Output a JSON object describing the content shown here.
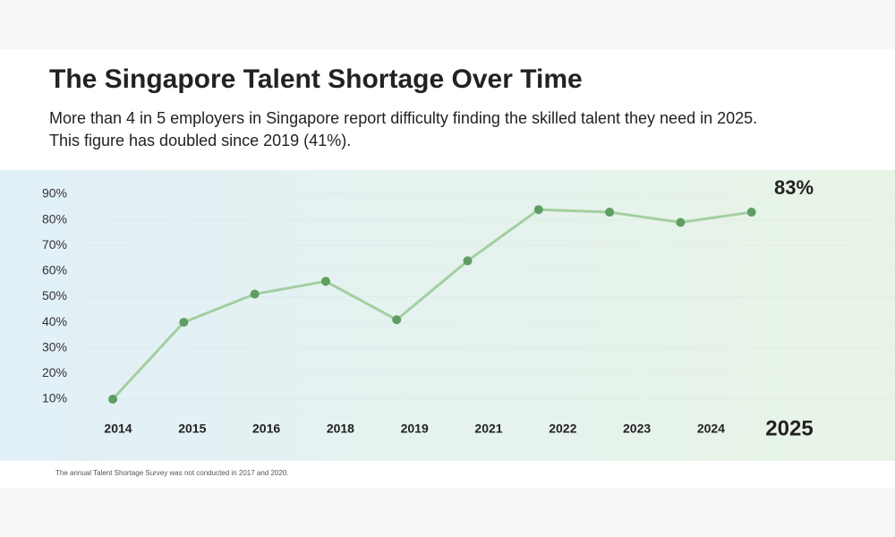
{
  "title": "The Singapore Talent Shortage Over Time",
  "subtitle": [
    "More than 4 in 5 employers in Singapore report difficulty finding the skilled talent they need in 2025.",
    "This figure has doubled since 2019 (41%)."
  ],
  "chart_data": {
    "type": "line",
    "categories": [
      "2014",
      "2015",
      "2016",
      "2018",
      "2019",
      "2021",
      "2022",
      "2023",
      "2024",
      "2025"
    ],
    "values": [
      10,
      40,
      51,
      56,
      41,
      64,
      84,
      83,
      79,
      83
    ],
    "value_labels": [
      null,
      null,
      null,
      null,
      null,
      null,
      null,
      null,
      null,
      "83%"
    ],
    "color": "#a3cfa0",
    "marker_color": "#5e9e62",
    "ylim": [
      0,
      100
    ],
    "yticks": [
      {
        "value": 10,
        "label": "10%"
      },
      {
        "value": 20,
        "label": "20%"
      },
      {
        "value": 30,
        "label": "30%"
      },
      {
        "value": 40,
        "label": "40%"
      },
      {
        "value": 50,
        "label": "50%"
      },
      {
        "value": 60,
        "label": "60%"
      },
      {
        "value": 70,
        "label": "70%"
      },
      {
        "value": 80,
        "label": "80%"
      },
      {
        "value": 90,
        "label": "90%"
      }
    ],
    "grid": true
  },
  "footnote": "The annual Talent Shortage Survey was not conducted in 2017 and 2020."
}
